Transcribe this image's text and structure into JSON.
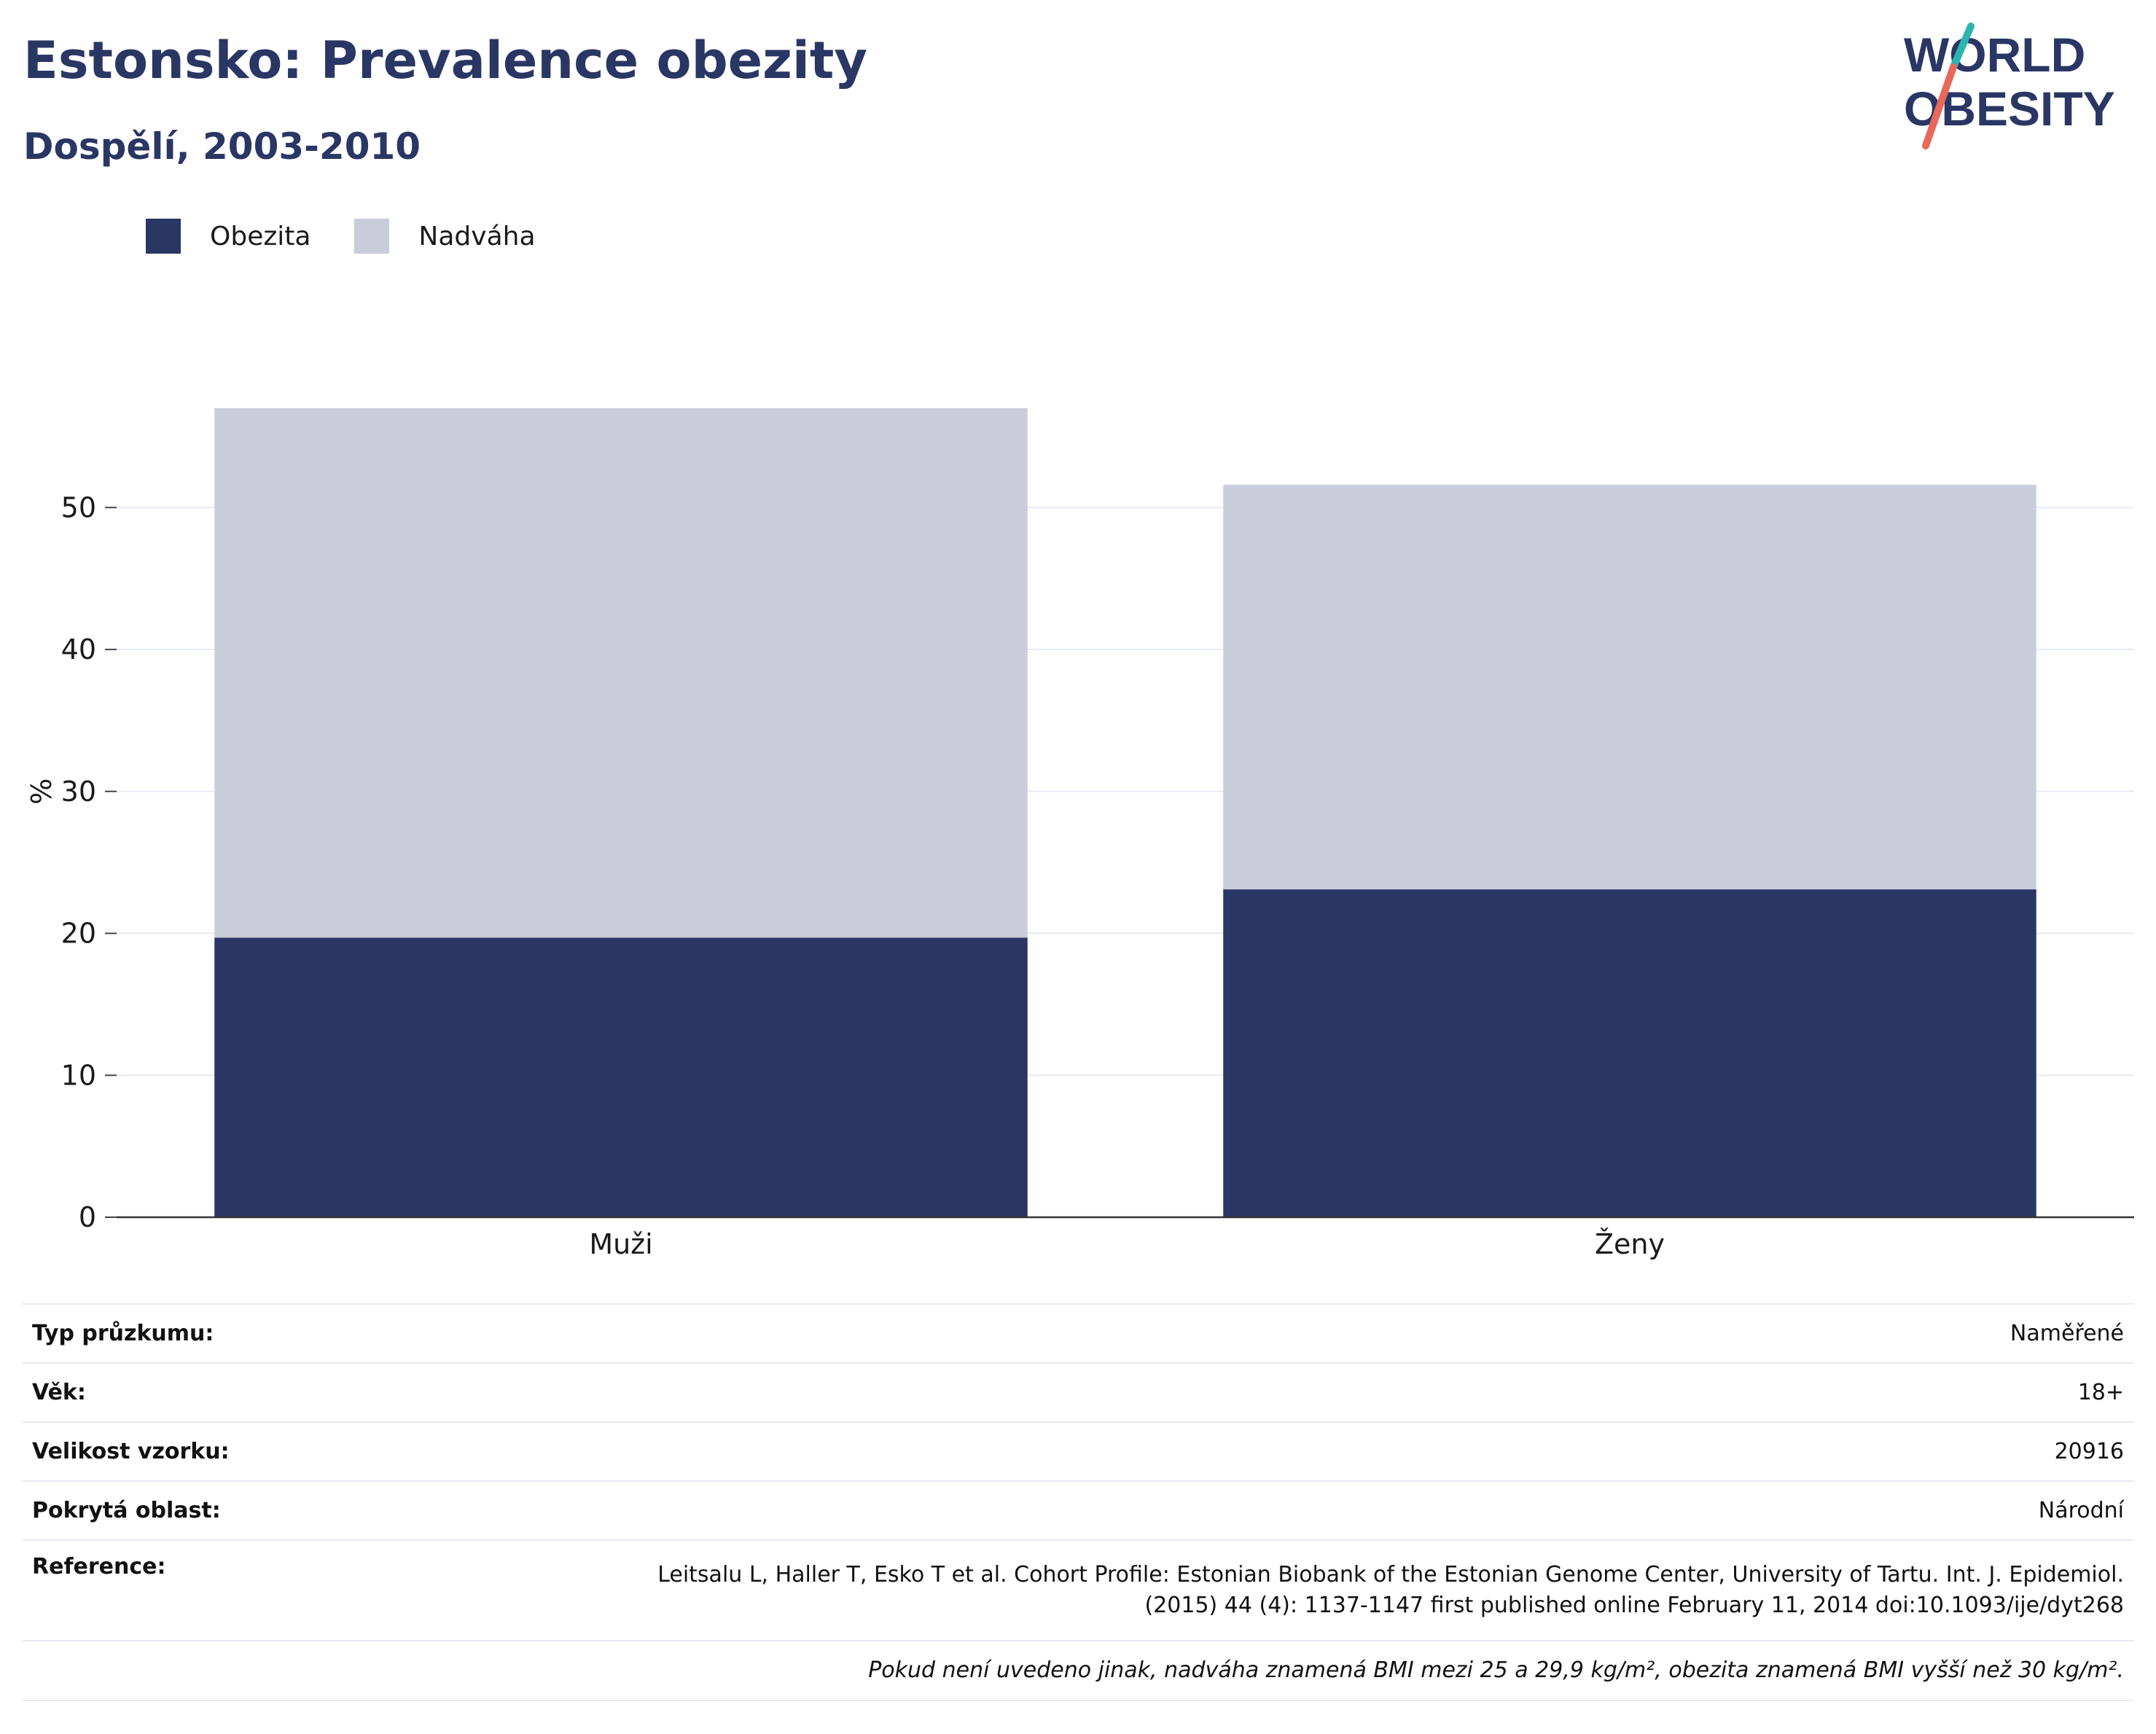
{
  "header": {
    "title": "Estonsko: Prevalence obezity",
    "subtitle": "Dospělí, 2003-2010"
  },
  "logo": {
    "line1": "WORLD",
    "line2": "OBESITY",
    "colors": {
      "text": "#2a3664",
      "slash_top": "#2bb5b0",
      "slash_bottom": "#e8685a"
    }
  },
  "legend": {
    "items": [
      {
        "label": "Obezita",
        "color": "#2a3664"
      },
      {
        "label": "Nadváha",
        "color": "#cacdd9"
      }
    ]
  },
  "chart_data": {
    "type": "bar",
    "stacked": true,
    "categories": [
      "Muži",
      "Ženy"
    ],
    "series": [
      {
        "name": "Obezita",
        "color": "#2a3664",
        "values": [
          19.7,
          23.1
        ]
      },
      {
        "name": "Nadváha",
        "color": "#cacdd9",
        "values": [
          37.3,
          28.5
        ]
      }
    ],
    "ylabel": "%",
    "ylim": [
      0,
      57
    ],
    "yticks": [
      0,
      10,
      20,
      30,
      40,
      50
    ],
    "grid": true,
    "legend_position": "top-left"
  },
  "info": {
    "rows": [
      {
        "label": "Typ průzkumu:",
        "value": "Naměřené"
      },
      {
        "label": "Věk:",
        "value": "18+"
      },
      {
        "label": "Velikost vzorku:",
        "value": "20916"
      },
      {
        "label": "Pokrytá oblast:",
        "value": "Národní"
      }
    ],
    "reference": {
      "label": "Reference:",
      "line1": "Leitsalu L, Haller T, Esko T et al. Cohort Profile: Estonian Biobank of the Estonian Genome Center, University of Tartu. Int. J. Epidemiol.",
      "line2": "(2015) 44 (4): 1137-1147 first published online February 11, 2014 doi:10.1093/ije/dyt268"
    },
    "note": "Pokud není uvedeno jinak, nadváha znamená BMI mezi 25 a 29,9 kg/m², obezita znamená BMI vyšší než 30 kg/m²."
  }
}
